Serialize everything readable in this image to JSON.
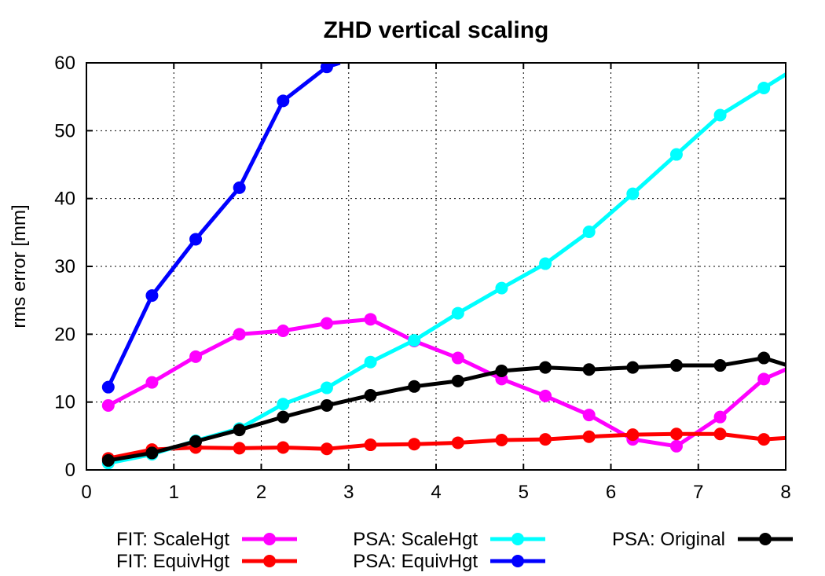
{
  "chart_data": {
    "type": "line",
    "title": "ZHD vertical scaling",
    "xlabel": "",
    "ylabel": "rms error [mm]",
    "xlim": [
      0,
      8
    ],
    "ylim": [
      0,
      60
    ],
    "xticks": [
      "0",
      "1",
      "2",
      "3",
      "4",
      "5",
      "6",
      "7",
      "8"
    ],
    "yticks": [
      "0",
      "10",
      "20",
      "30",
      "40",
      "50",
      "60"
    ],
    "grid": true,
    "legend_position": "bottom",
    "series": [
      {
        "name": "FIT: ScaleHgt",
        "color": "#ff00ff",
        "x": [
          0.25,
          0.75,
          1.25,
          1.75,
          2.25,
          2.75,
          3.25,
          3.75,
          4.25,
          4.75,
          5.25,
          5.75,
          6.25,
          6.75,
          7.25,
          7.75,
          8.0
        ],
        "y": [
          9.5,
          12.9,
          16.7,
          20.0,
          20.5,
          21.6,
          22.2,
          19.0,
          16.5,
          13.4,
          10.9,
          8.1,
          4.5,
          3.5,
          7.8,
          13.4,
          14.8
        ]
      },
      {
        "name": "FIT: EquivHgt",
        "color": "#ff0000",
        "x": [
          0.25,
          0.75,
          1.25,
          1.75,
          2.25,
          2.75,
          3.25,
          3.75,
          4.25,
          4.75,
          5.25,
          5.75,
          6.25,
          6.75,
          7.25,
          7.75,
          8.0
        ],
        "y": [
          1.7,
          3.0,
          3.3,
          3.2,
          3.3,
          3.1,
          3.7,
          3.8,
          4.0,
          4.4,
          4.5,
          4.9,
          5.2,
          5.3,
          5.3,
          4.5,
          4.7
        ]
      },
      {
        "name": "PSA: ScaleHgt",
        "color": "#00ffff",
        "x": [
          0.25,
          0.75,
          1.25,
          1.75,
          2.25,
          2.75,
          3.25,
          3.75,
          4.25,
          4.75,
          5.25,
          5.75,
          6.25,
          6.75,
          7.25,
          7.75,
          8.0
        ],
        "y": [
          1.0,
          2.3,
          4.3,
          6.1,
          9.7,
          12.1,
          15.9,
          19.1,
          23.1,
          26.8,
          30.4,
          35.1,
          40.7,
          46.5,
          52.3,
          56.3,
          58.3
        ]
      },
      {
        "name": "PSA: EquivHgt",
        "color": "#0000ff",
        "x": [
          0.25,
          0.75,
          1.25,
          1.75,
          2.25,
          2.75,
          2.9
        ],
        "y": [
          12.2,
          25.7,
          34.0,
          41.6,
          54.4,
          59.4,
          60.0
        ]
      },
      {
        "name": "PSA: Original",
        "color": "#000000",
        "x": [
          0.25,
          0.75,
          1.25,
          1.75,
          2.25,
          2.75,
          3.25,
          3.75,
          4.25,
          4.75,
          5.25,
          5.75,
          6.25,
          6.75,
          7.25,
          7.75,
          8.0
        ],
        "y": [
          1.4,
          2.5,
          4.2,
          5.9,
          7.8,
          9.5,
          11.0,
          12.3,
          13.1,
          14.6,
          15.1,
          14.8,
          15.1,
          15.4,
          15.4,
          16.5,
          15.5
        ]
      }
    ]
  }
}
